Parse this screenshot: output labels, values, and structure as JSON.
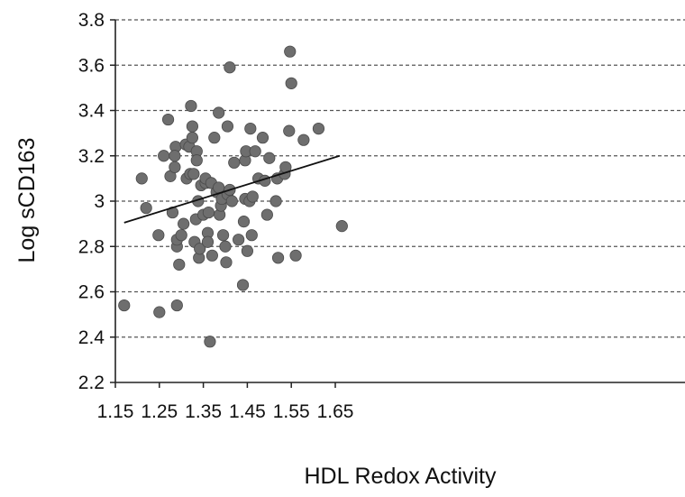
{
  "chart_data": {
    "type": "scatter",
    "title": "",
    "xlabel": "HDL Redox Activity",
    "ylabel": "Log sCD163",
    "xlim": [
      1.15,
      1.67
    ],
    "ylim": [
      2.2,
      3.8
    ],
    "x_ticks": [
      "1.15",
      "1.25",
      "1.35",
      "1.45",
      "1.55",
      "1.65"
    ],
    "y_ticks": [
      "2.2",
      "2.4",
      "2.6",
      "2.8",
      "3",
      "3.2",
      "3.4",
      "3.6",
      "3.8"
    ],
    "grid": "horizontal dashed",
    "legend": "none",
    "colors": {
      "points": "#6e6e6e",
      "trendline": "#111111",
      "grid": "#555555",
      "axis": "#222222"
    },
    "trendline": {
      "x": [
        1.17,
        1.66
      ],
      "y": [
        2.905,
        3.2
      ]
    },
    "series": [
      {
        "x": [
          1.17,
          1.21,
          1.22,
          1.25,
          1.248,
          1.26,
          1.27,
          1.275,
          1.28,
          1.285,
          1.287,
          1.285,
          1.29,
          1.29,
          1.295,
          1.29,
          1.3,
          1.305,
          1.31,
          1.312,
          1.318,
          1.32,
          1.322,
          1.325,
          1.325,
          1.328,
          1.33,
          1.333,
          1.335,
          1.335,
          1.338,
          1.34,
          1.342,
          1.345,
          1.35,
          1.355,
          1.355,
          1.36,
          1.36,
          1.362,
          1.365,
          1.368,
          1.37,
          1.375,
          1.38,
          1.385,
          1.385,
          1.387,
          1.39,
          1.392,
          1.395,
          1.4,
          1.402,
          1.405,
          1.405,
          1.41,
          1.41,
          1.415,
          1.42,
          1.43,
          1.44,
          1.442,
          1.445,
          1.445,
          1.447,
          1.45,
          1.455,
          1.457,
          1.46,
          1.462,
          1.468,
          1.475,
          1.485,
          1.49,
          1.495,
          1.5,
          1.515,
          1.518,
          1.52,
          1.535,
          1.537,
          1.545,
          1.547,
          1.55,
          1.56,
          1.578,
          1.612,
          1.665
        ],
        "y": [
          2.54,
          3.1,
          2.97,
          2.51,
          2.85,
          3.2,
          3.36,
          3.11,
          2.95,
          3.15,
          3.24,
          3.2,
          2.8,
          2.83,
          2.72,
          2.54,
          2.85,
          2.9,
          3.25,
          3.1,
          3.24,
          3.12,
          3.42,
          3.33,
          3.28,
          3.12,
          2.82,
          2.92,
          3.22,
          3.18,
          3.0,
          2.75,
          2.79,
          3.07,
          2.94,
          3.08,
          3.1,
          2.86,
          2.82,
          2.95,
          2.38,
          3.08,
          2.76,
          3.28,
          3.04,
          3.06,
          3.39,
          2.94,
          2.98,
          3.01,
          2.85,
          2.8,
          2.73,
          3.03,
          3.33,
          3.05,
          3.59,
          3.0,
          3.17,
          2.83,
          2.63,
          2.91,
          3.01,
          3.18,
          3.22,
          2.78,
          3.0,
          3.32,
          2.85,
          3.02,
          3.22,
          3.1,
          3.28,
          3.09,
          2.94,
          3.19,
          3.0,
          3.1,
          2.75,
          3.12,
          3.15,
          3.31,
          3.66,
          3.52,
          2.76,
          3.27,
          3.32,
          2.89
        ]
      }
    ]
  }
}
